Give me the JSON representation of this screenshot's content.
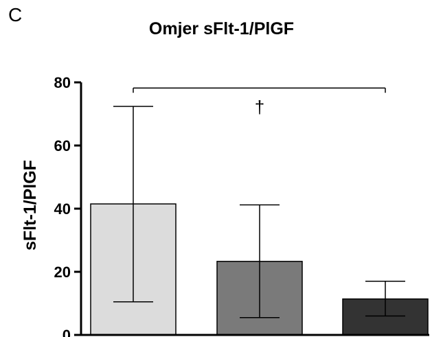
{
  "panel_label": "C",
  "chart_data": {
    "type": "bar",
    "title": "Omjer sFlt-1/PlGF",
    "ylabel": "sFlt-1/PlGF",
    "xlabel": "",
    "ylim": [
      0,
      80
    ],
    "yticks": [
      0,
      20,
      40,
      60,
      80
    ],
    "categories": [
      "",
      "",
      ""
    ],
    "values": [
      41.5,
      23.3,
      11.4
    ],
    "error_low": [
      10.5,
      5.5,
      6.0
    ],
    "error_high": [
      72.4,
      41.2,
      17.0
    ],
    "bar_colors": [
      "#dcdcdc",
      "#7a7a7a",
      "#333333"
    ],
    "annotations": [
      {
        "text": "†",
        "from_bar": 0,
        "to_bar": 2,
        "y": 78
      }
    ],
    "grid": false,
    "legend": "none"
  }
}
